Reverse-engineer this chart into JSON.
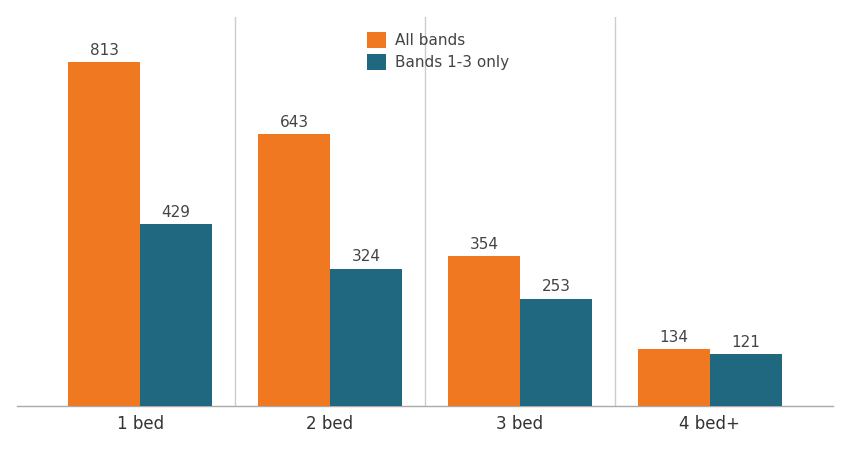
{
  "categories": [
    "1 bed",
    "2 bed",
    "3 bed",
    "4 bed+"
  ],
  "all_bands": [
    813,
    643,
    354,
    134
  ],
  "bands_1_3": [
    429,
    324,
    253,
    121
  ],
  "color_all_bands": "#F07820",
  "color_bands_1_3": "#1F6880",
  "legend_all_bands": "All bands",
  "legend_bands_1_3": "Bands 1-3 only",
  "bar_width": 0.38,
  "ylim": [
    0,
    920
  ],
  "background_color": "#ffffff",
  "label_fontsize": 11,
  "axis_fontsize": 12,
  "legend_fontsize": 11,
  "tick_fontsize": 12,
  "separator_color": "#cccccc",
  "spine_color": "#aaaaaa",
  "label_color": "#444444"
}
